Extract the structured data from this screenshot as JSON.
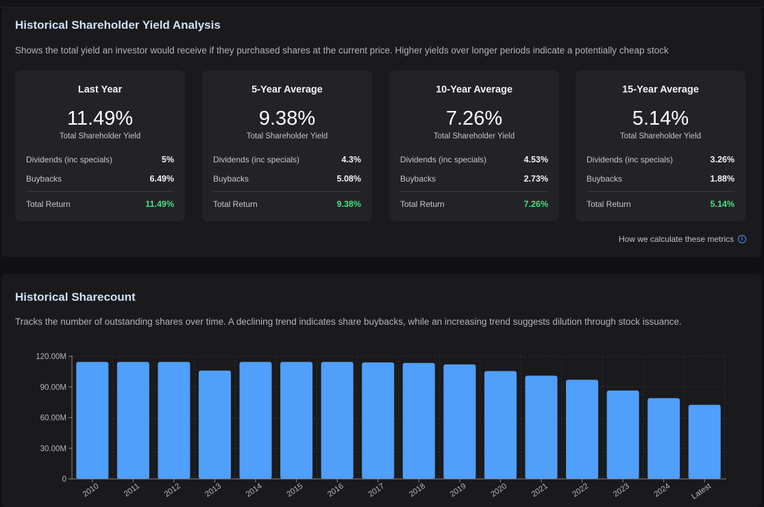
{
  "yield_section": {
    "title": "Historical Shareholder Yield Analysis",
    "description": "Shows the total yield an investor would receive if they purchased shares at the current price. Higher yields over longer periods indicate a potentially cheap stock",
    "cards": [
      {
        "title": "Last Year",
        "total": "11.49%",
        "total_label": "Total Shareholder Yield",
        "dividends_label": "Dividends (inc specials)",
        "dividends": "5%",
        "buybacks_label": "Buybacks",
        "buybacks": "6.49%",
        "total_return_label": "Total Return",
        "total_return": "11.49%"
      },
      {
        "title": "5-Year Average",
        "total": "9.38%",
        "total_label": "Total Shareholder Yield",
        "dividends_label": "Dividends (inc specials)",
        "dividends": "4.3%",
        "buybacks_label": "Buybacks",
        "buybacks": "5.08%",
        "total_return_label": "Total Return",
        "total_return": "9.38%"
      },
      {
        "title": "10-Year Average",
        "total": "7.26%",
        "total_label": "Total Shareholder Yield",
        "dividends_label": "Dividends (inc specials)",
        "dividends": "4.53%",
        "buybacks_label": "Buybacks",
        "buybacks": "2.73%",
        "total_return_label": "Total Return",
        "total_return": "7.26%"
      },
      {
        "title": "15-Year Average",
        "total": "5.14%",
        "total_label": "Total Shareholder Yield",
        "dividends_label": "Dividends (inc specials)",
        "dividends": "3.26%",
        "buybacks_label": "Buybacks",
        "buybacks": "1.88%",
        "total_return_label": "Total Return",
        "total_return": "5.14%"
      }
    ],
    "help_link": "How we calculate these metrics",
    "help_icon": "info-icon"
  },
  "sharecount_section": {
    "title": "Historical Sharecount",
    "description": "Tracks the number of outstanding shares over time. A declining trend indicates share buybacks, while an increasing trend suggests dilution through stock issuance."
  },
  "colors": {
    "accent": "#4d9cf5",
    "bar": "#4f9ffb",
    "positive": "#4ade80"
  },
  "chart_data": {
    "type": "bar",
    "title": "Historical Sharecount",
    "xlabel": "",
    "ylabel": "",
    "categories": [
      "2010",
      "2011",
      "2012",
      "2013",
      "2014",
      "2015",
      "2016",
      "2017",
      "2018",
      "2019",
      "2020",
      "2021",
      "2022",
      "2023",
      "2024",
      "Latest"
    ],
    "values": [
      114.5,
      114.5,
      114.5,
      106.0,
      114.5,
      114.5,
      114.5,
      114.0,
      113.5,
      112.0,
      105.5,
      101.0,
      97.0,
      86.5,
      79.0,
      72.5
    ],
    "unit": "M",
    "ylim": [
      0,
      120
    ],
    "yticks": [
      0,
      30,
      60,
      90,
      120
    ],
    "ytick_labels": [
      "0",
      "30.00M",
      "60.00M",
      "90.00M",
      "120.00M"
    ],
    "grid": true
  }
}
